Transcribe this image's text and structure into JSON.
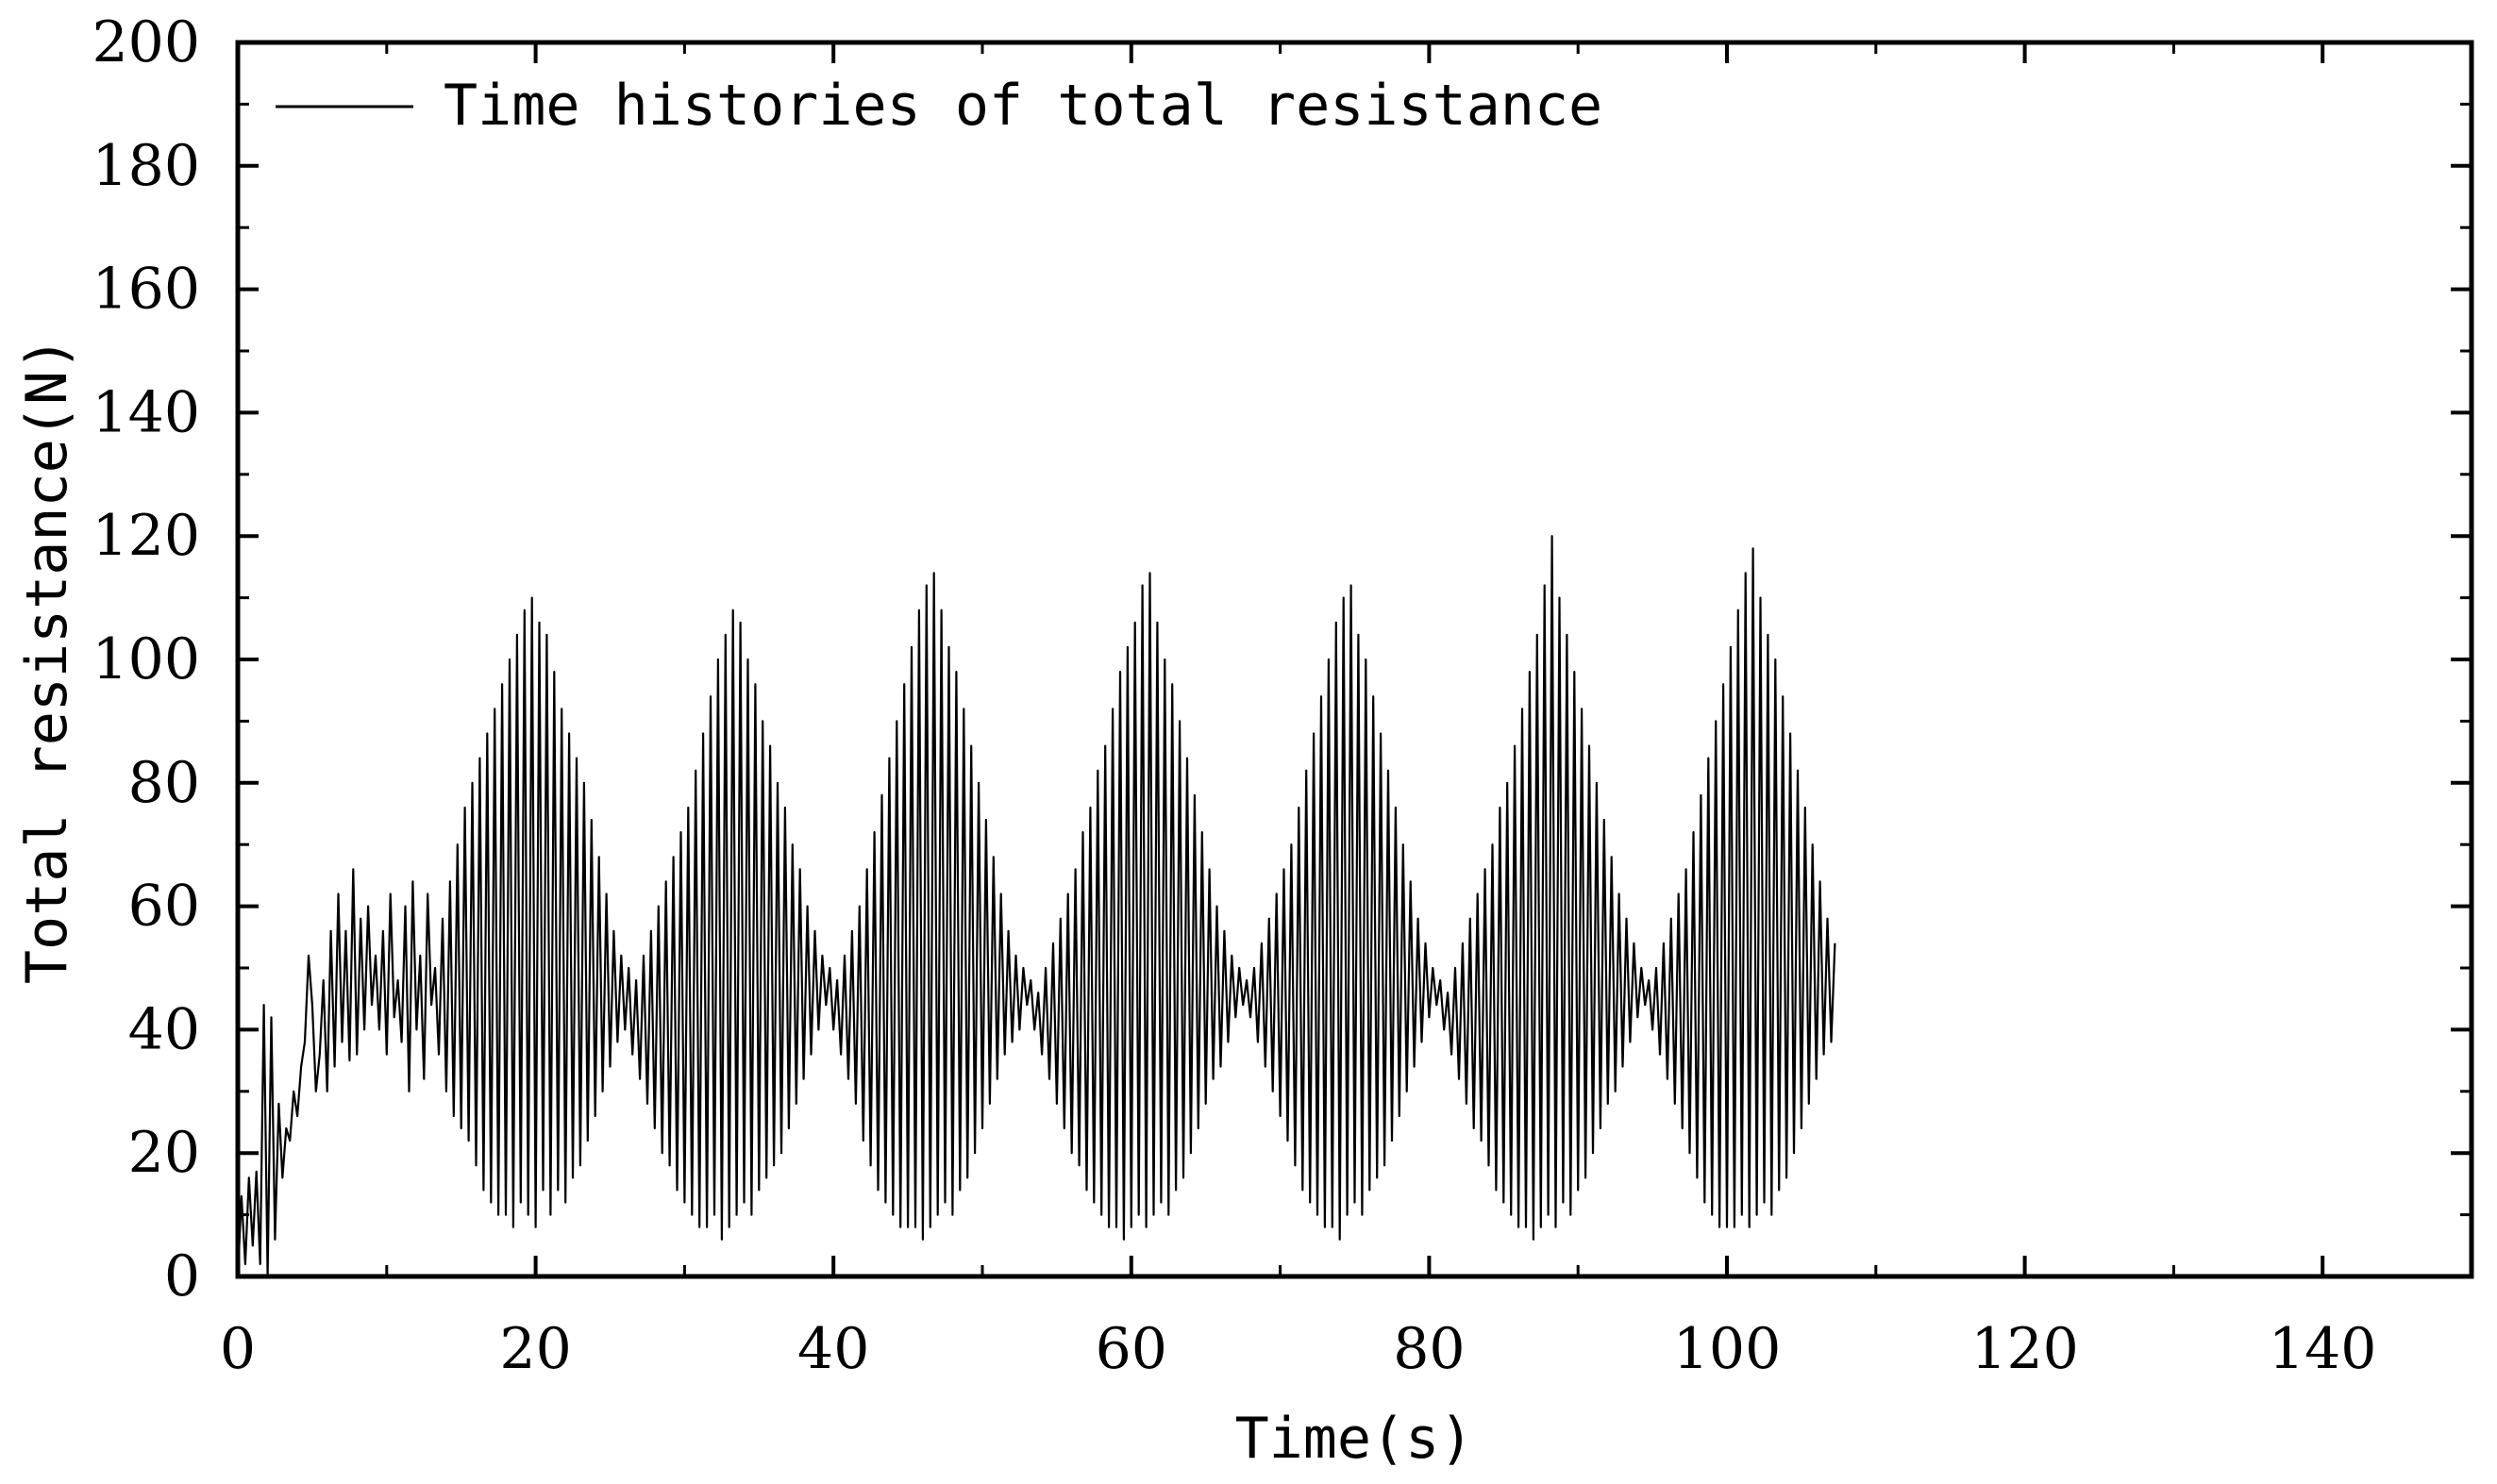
{
  "chart_data": {
    "type": "line",
    "title": "",
    "xlabel": "Time(s)",
    "ylabel": "Total resistance(N)",
    "xlim": [
      0,
      150
    ],
    "ylim": [
      0,
      200
    ],
    "x_ticks": [
      "0",
      "20",
      "40",
      "60",
      "80",
      "100",
      "120",
      "140"
    ],
    "y_ticks": [
      "0",
      "20",
      "40",
      "60",
      "80",
      "100",
      "120",
      "140",
      "160",
      "180",
      "200"
    ],
    "grid": false,
    "legend_position": "top-left",
    "line_color": "#000000",
    "series": [
      {
        "name": "Time histories of total resistance",
        "sample_step_s": 0.25,
        "x_start_s": 0,
        "values": [
          0,
          13,
          2,
          16,
          5,
          17,
          2,
          44,
          0,
          42,
          6,
          28,
          16,
          24,
          22,
          30,
          26,
          34,
          38,
          52,
          44,
          30,
          36,
          48,
          30,
          56,
          34,
          62,
          38,
          56,
          35,
          66,
          36,
          58,
          40,
          60,
          44,
          52,
          40,
          56,
          36,
          62,
          42,
          48,
          38,
          60,
          30,
          64,
          40,
          52,
          32,
          62,
          44,
          50,
          36,
          58,
          30,
          64,
          26,
          70,
          24,
          76,
          22,
          80,
          18,
          84,
          14,
          88,
          12,
          92,
          10,
          96,
          10,
          100,
          8,
          104,
          12,
          108,
          10,
          110,
          8,
          106,
          14,
          104,
          10,
          98,
          14,
          92,
          12,
          88,
          16,
          84,
          18,
          80,
          22,
          74,
          26,
          68,
          30,
          62,
          34,
          56,
          38,
          52,
          40,
          50,
          36,
          48,
          32,
          52,
          28,
          56,
          24,
          60,
          20,
          64,
          18,
          68,
          14,
          72,
          12,
          76,
          10,
          82,
          8,
          88,
          8,
          94,
          10,
          100,
          6,
          104,
          8,
          108,
          10,
          106,
          12,
          100,
          10,
          96,
          14,
          90,
          16,
          86,
          18,
          80,
          20,
          76,
          24,
          70,
          28,
          66,
          32,
          60,
          36,
          56,
          40,
          52,
          44,
          50,
          40,
          48,
          36,
          52,
          32,
          56,
          28,
          60,
          22,
          66,
          18,
          72,
          14,
          78,
          12,
          84,
          10,
          90,
          8,
          96,
          8,
          102,
          8,
          108,
          6,
          112,
          8,
          114,
          10,
          108,
          12,
          102,
          10,
          98,
          14,
          92,
          16,
          86,
          20,
          80,
          24,
          74,
          28,
          68,
          32,
          62,
          36,
          56,
          38,
          52,
          40,
          50,
          44,
          48,
          40,
          46,
          36,
          50,
          32,
          54,
          28,
          58,
          24,
          62,
          20,
          66,
          18,
          72,
          14,
          76,
          12,
          82,
          10,
          86,
          8,
          92,
          8,
          98,
          6,
          102,
          8,
          106,
          10,
          112,
          8,
          114,
          10,
          106,
          12,
          100,
          10,
          96,
          14,
          90,
          16,
          84,
          20,
          78,
          24,
          72,
          28,
          66,
          32,
          60,
          34,
          56,
          38,
          52,
          42,
          50,
          44,
          48,
          42,
          50,
          38,
          54,
          34,
          58,
          30,
          62,
          26,
          66,
          22,
          70,
          18,
          76,
          14,
          82,
          12,
          88,
          10,
          94,
          8,
          100,
          8,
          106,
          6,
          110,
          10,
          112,
          12,
          104,
          10,
          100,
          14,
          94,
          16,
          88,
          18,
          82,
          22,
          76,
          26,
          70,
          30,
          64,
          34,
          58,
          38,
          54,
          42,
          50,
          44,
          48,
          40,
          46,
          36,
          50,
          32,
          54,
          28,
          58,
          24,
          62,
          22,
          66,
          18,
          70,
          14,
          76,
          12,
          80,
          10,
          86,
          8,
          92,
          8,
          98,
          6,
          104,
          8,
          112,
          10,
          120,
          8,
          110,
          12,
          104,
          10,
          98,
          14,
          92,
          16,
          86,
          20,
          80,
          24,
          74,
          28,
          68,
          30,
          62,
          34,
          58,
          38,
          54,
          42,
          50,
          44,
          48,
          40,
          50,
          36,
          54,
          32,
          58,
          28,
          62,
          24,
          66,
          20,
          72,
          16,
          78,
          12,
          84,
          10,
          90,
          8,
          96,
          8,
          102,
          8,
          108,
          10,
          114,
          8,
          118,
          10,
          110,
          12,
          104,
          10,
          100,
          14,
          94,
          16,
          88,
          20,
          82,
          24,
          76,
          28,
          70,
          32,
          64,
          36,
          58,
          38,
          54
        ]
      }
    ]
  }
}
